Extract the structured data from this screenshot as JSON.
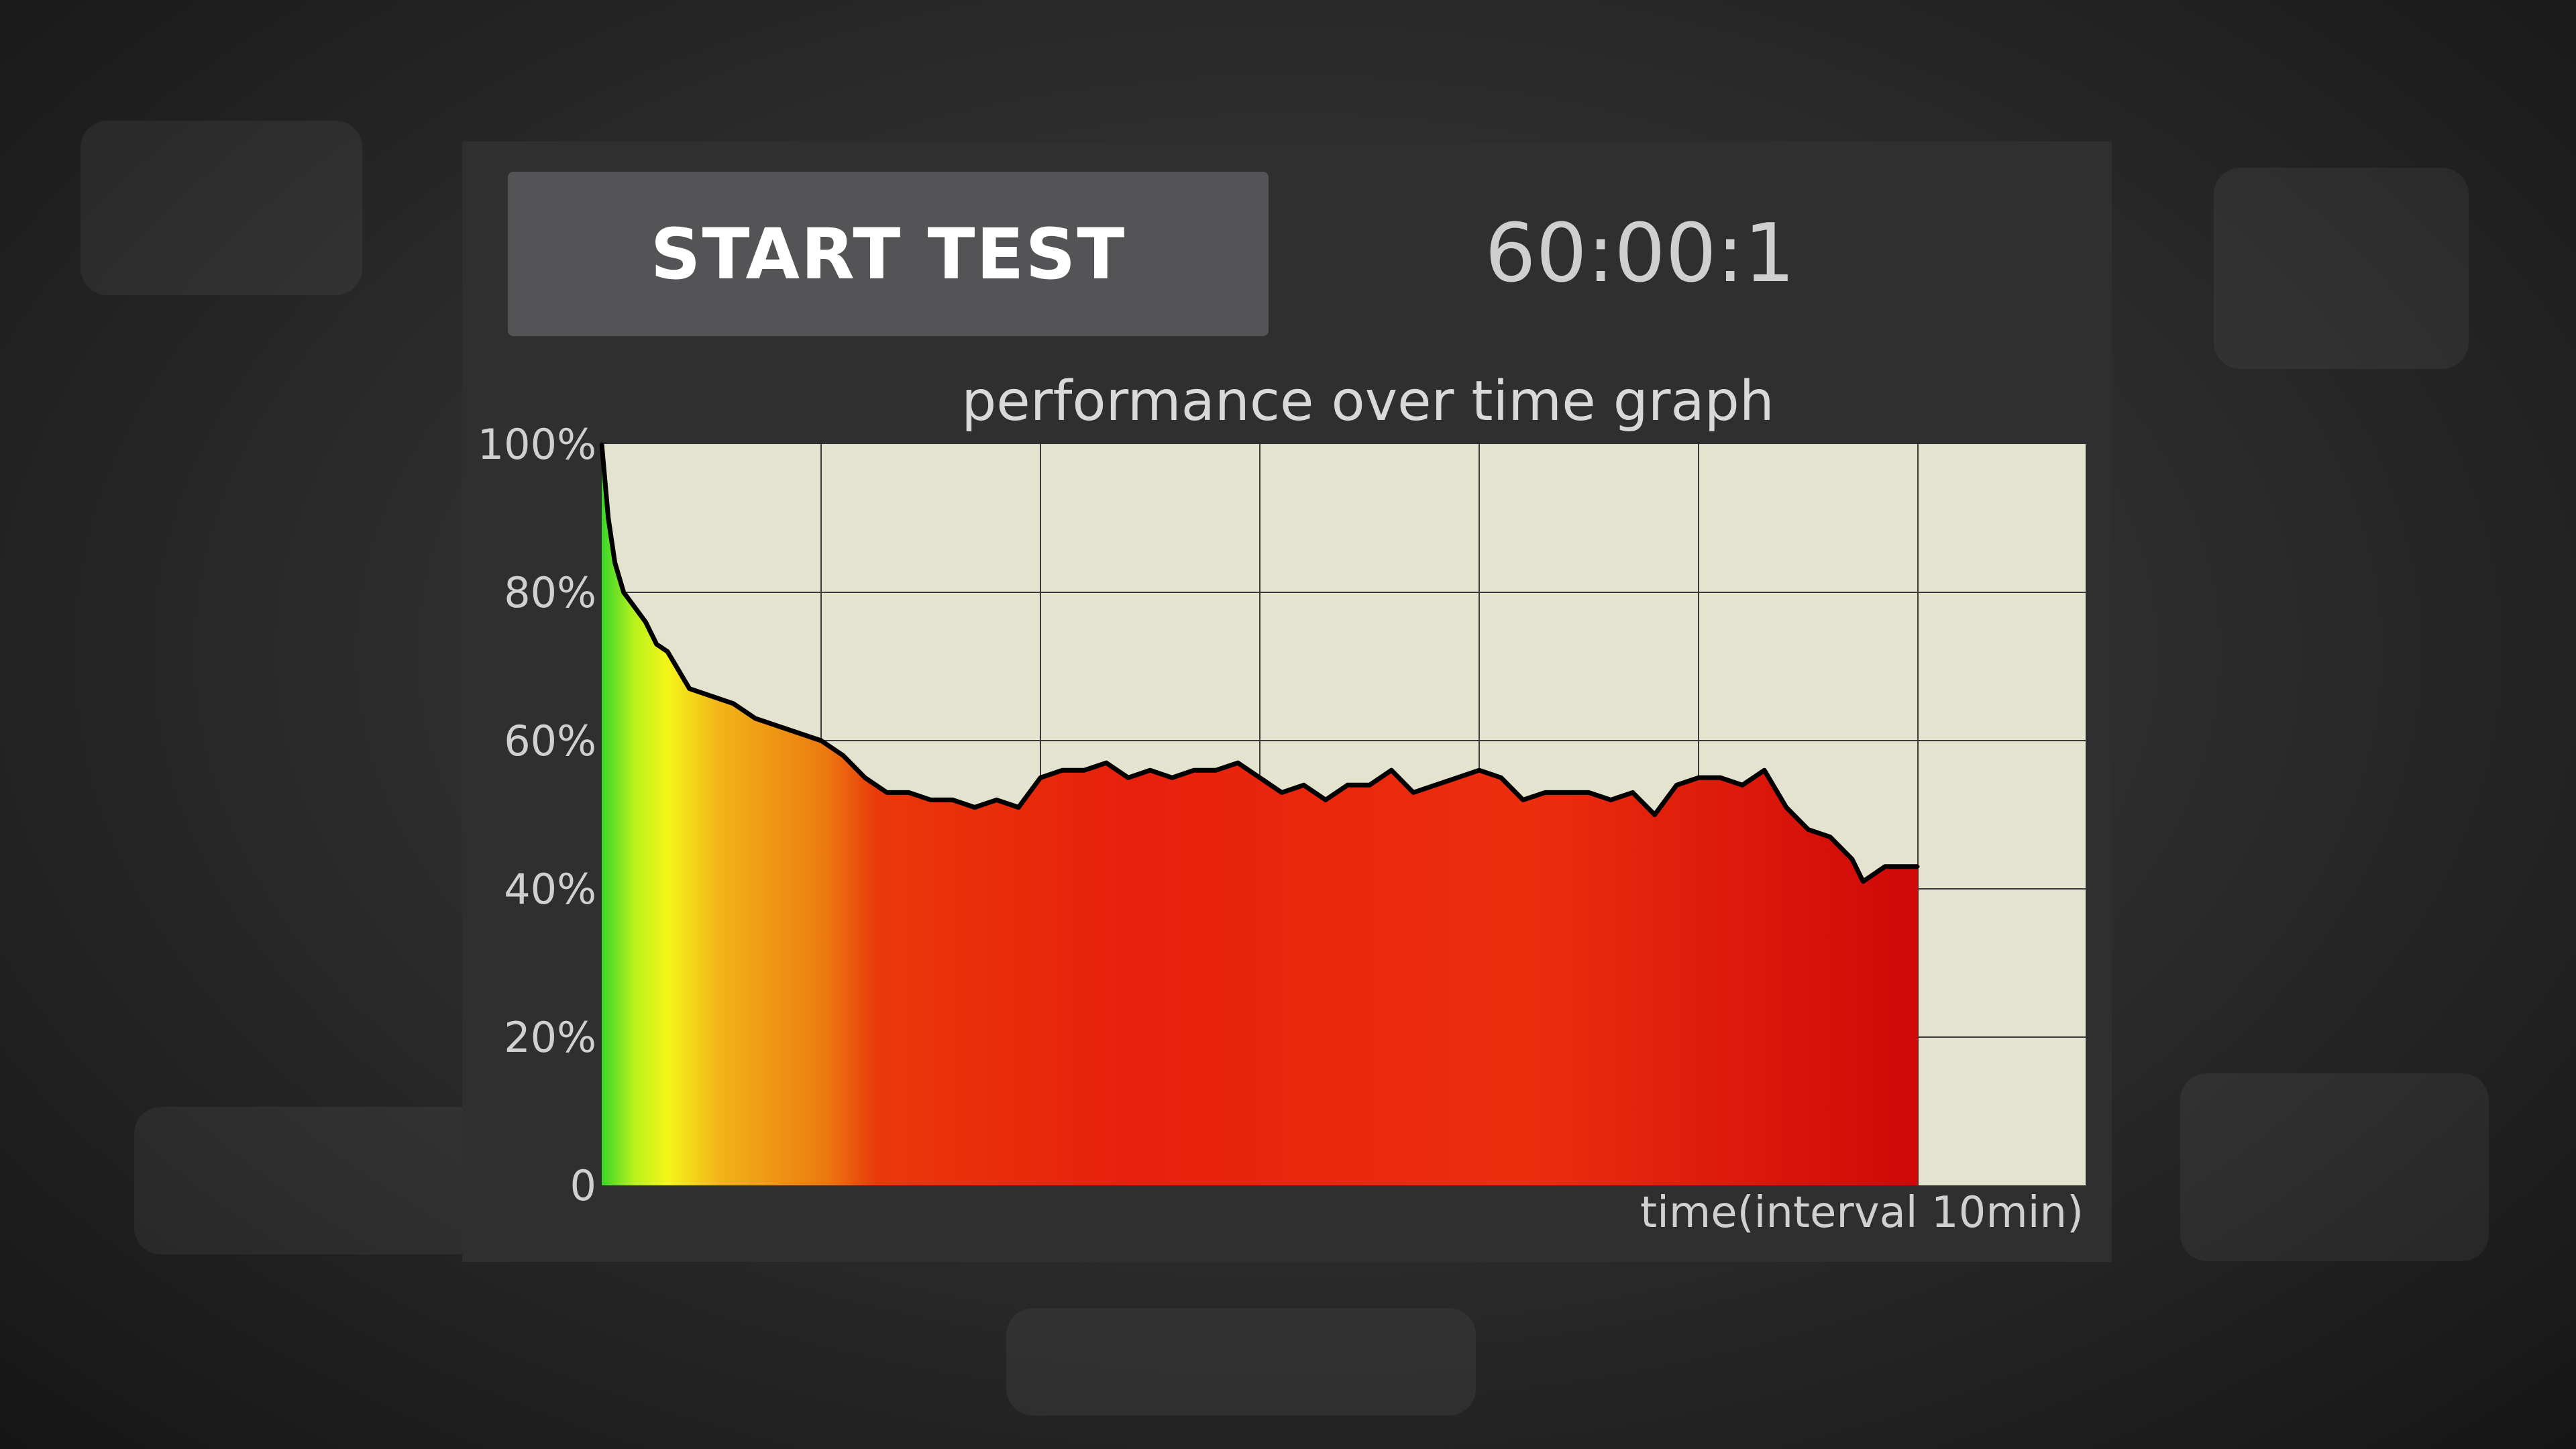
{
  "controls": {
    "start_button_label": "START TEST",
    "timer_value": "60:00:1"
  },
  "colors": {
    "panel_background": "#2f2f2f",
    "plot_background": "#e3e3cf",
    "button_background": "#545456",
    "line_color": "#000000"
  },
  "chart_data": {
    "type": "area",
    "title": "performance over time graph",
    "xlabel": "time(interval 10min)",
    "ylabel": "",
    "ylim": [
      0,
      100
    ],
    "yticks": [
      "0",
      "20%",
      "40%",
      "60%",
      "80%",
      "100%"
    ],
    "grid": true,
    "fill": "color gradient by elapsed time: green → yellow → orange → red",
    "x_interval_minutes": 10,
    "x_minutes": [
      0,
      0.3,
      0.6,
      1,
      1.5,
      2,
      2.5,
      3,
      4,
      5,
      6,
      7,
      8,
      9,
      10,
      11,
      12,
      13,
      14,
      15,
      16,
      17,
      18,
      19,
      20,
      21,
      22,
      23,
      24,
      25,
      26,
      27,
      28,
      29,
      30,
      31,
      32,
      33,
      34,
      35,
      36,
      37,
      38,
      39,
      40,
      41,
      42,
      43,
      44,
      45,
      46,
      47,
      48,
      49,
      50,
      51,
      52,
      53,
      54,
      55,
      56,
      57,
      57.5,
      58,
      58.5,
      59,
      59.5,
      60
    ],
    "values": [
      100,
      90,
      84,
      80,
      78,
      76,
      73,
      72,
      67,
      66,
      65,
      63,
      62,
      61,
      60,
      58,
      55,
      53,
      53,
      52,
      52,
      51,
      52,
      51,
      55,
      56,
      56,
      57,
      55,
      56,
      55,
      56,
      56,
      57,
      55,
      53,
      54,
      52,
      54,
      54,
      56,
      53,
      54,
      55,
      56,
      55,
      52,
      53,
      53,
      53,
      52,
      53,
      50,
      54,
      55,
      55,
      54,
      56,
      51,
      48,
      47,
      44,
      41,
      42,
      43,
      43,
      43,
      43
    ]
  }
}
